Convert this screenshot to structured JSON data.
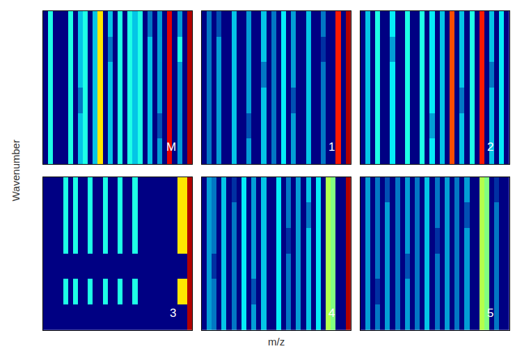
{
  "chart_data": [
    {
      "type": "heatmap",
      "annotation": "M",
      "tick_labels": false,
      "zlim": [
        0,
        10
      ],
      "z": [
        [
          0,
          4,
          0,
          0,
          0,
          4,
          0,
          3,
          4,
          0,
          3,
          6.5,
          0,
          3,
          0,
          4,
          0,
          4,
          3,
          4,
          0,
          3,
          0,
          2.5,
          0,
          9,
          0,
          2.5,
          0,
          9.5
        ],
        [
          0,
          4,
          0,
          0,
          0,
          4,
          0,
          3,
          4,
          0,
          3,
          6.5,
          0,
          3,
          0,
          4,
          0,
          4,
          3,
          4,
          0,
          3,
          0,
          1.5,
          0,
          9,
          0,
          2.5,
          0,
          9.5
        ],
        [
          0,
          4,
          0,
          0,
          0,
          4,
          0,
          2,
          4,
          0,
          3,
          6.5,
          0,
          3,
          0,
          4,
          0,
          4,
          3,
          4,
          0,
          3,
          0,
          2.5,
          0,
          9,
          0,
          2.5,
          0,
          9.5
        ],
        [
          0,
          4,
          0,
          0,
          0,
          4,
          0,
          3,
          4,
          0,
          3,
          6.5,
          0,
          3,
          0,
          4,
          0,
          4,
          3,
          4,
          0,
          3,
          0,
          2.5,
          0,
          9,
          0,
          2.5,
          0,
          9.5
        ],
        [
          0,
          4,
          0,
          0,
          0,
          4,
          0,
          3,
          4,
          0,
          3,
          6.5,
          0,
          2,
          0,
          4,
          0,
          4,
          3,
          4,
          0,
          3,
          0,
          2.5,
          0,
          9,
          0,
          4,
          0,
          9.5
        ],
        [
          0,
          4,
          0,
          0,
          0,
          4,
          0,
          3,
          4,
          0,
          3,
          6.5,
          0,
          3,
          0,
          4,
          0,
          4,
          3,
          4,
          0,
          2,
          0,
          2.5,
          0,
          9,
          0,
          2.5,
          0,
          9.5
        ]
      ]
    },
    {
      "type": "heatmap",
      "annotation": "1",
      "tick_labels": false,
      "zlim": [
        0,
        10
      ],
      "z": [
        [
          0,
          2,
          0,
          2.5,
          0,
          0,
          3,
          0,
          0,
          2.5,
          0,
          0,
          3,
          0,
          2,
          0,
          3.5,
          0,
          2.5,
          0,
          0,
          3,
          0,
          0,
          2,
          0,
          0,
          8.5,
          0,
          9.5
        ],
        [
          0,
          2,
          0,
          2.5,
          0,
          0,
          3,
          0,
          0,
          1.5,
          0,
          0,
          3,
          0,
          2,
          0,
          3.5,
          0,
          2.5,
          0,
          0,
          3,
          0,
          0,
          2,
          0,
          0,
          8.5,
          0,
          9.5
        ],
        [
          0,
          2,
          0,
          2.5,
          0,
          0,
          3,
          0,
          0,
          2.5,
          0,
          0,
          3,
          0,
          2,
          0,
          3.5,
          0,
          1.5,
          0,
          0,
          3,
          0,
          0,
          2,
          0,
          0,
          8.5,
          0,
          9.5
        ],
        [
          0,
          2,
          0,
          2.5,
          0,
          0,
          3,
          0,
          0,
          2.5,
          0,
          0,
          2,
          0,
          2,
          0,
          3.5,
          0,
          2.5,
          0,
          0,
          3,
          0,
          0,
          2,
          0,
          0,
          8.5,
          0,
          9.5
        ],
        [
          0,
          2,
          0,
          2.5,
          0,
          0,
          3,
          0,
          0,
          2.5,
          0,
          0,
          3,
          0,
          2,
          0,
          3.5,
          0,
          2.5,
          0,
          0,
          3,
          0,
          0,
          1,
          0,
          0,
          8.5,
          0,
          9.5
        ],
        [
          0,
          2,
          0,
          1.5,
          0,
          0,
          3,
          0,
          0,
          2.5,
          0,
          0,
          3,
          0,
          2,
          0,
          3.5,
          0,
          2.5,
          0,
          0,
          3,
          0,
          0,
          2,
          0,
          0,
          8.5,
          0,
          9.5
        ]
      ]
    },
    {
      "type": "heatmap",
      "annotation": "2",
      "tick_labels": false,
      "zlim": [
        0,
        10
      ],
      "z": [
        [
          0,
          3,
          0,
          4,
          0,
          0,
          3.5,
          0,
          0,
          4,
          0,
          0,
          4,
          0,
          3.5,
          0,
          3,
          0,
          8,
          0,
          3,
          0,
          4,
          0,
          8.5,
          0,
          3,
          0,
          3.5,
          0
        ],
        [
          0,
          3,
          0,
          4,
          0,
          0,
          3.5,
          0,
          0,
          4,
          0,
          0,
          4,
          0,
          2.5,
          0,
          3,
          0,
          8,
          0,
          3,
          0,
          4,
          0,
          8.5,
          0,
          3,
          0,
          3.5,
          0
        ],
        [
          0,
          3,
          0,
          4,
          0,
          0,
          3.5,
          0,
          0,
          4,
          0,
          0,
          4,
          0,
          3.5,
          0,
          3,
          0,
          8,
          0,
          2,
          0,
          4,
          0,
          8.5,
          0,
          3,
          0,
          3.5,
          0
        ],
        [
          0,
          3,
          0,
          4,
          0,
          0,
          3.5,
          0,
          0,
          4,
          0,
          0,
          4,
          0,
          3.5,
          0,
          3,
          0,
          8,
          0,
          3,
          0,
          4,
          0,
          8.5,
          0,
          2,
          0,
          3.5,
          0
        ],
        [
          0,
          3,
          0,
          4,
          0,
          0,
          2.5,
          0,
          0,
          4,
          0,
          0,
          4,
          0,
          3.5,
          0,
          3,
          0,
          8,
          0,
          3,
          0,
          4,
          0,
          8.5,
          0,
          3,
          0,
          3.5,
          0
        ],
        [
          0,
          3,
          0,
          4,
          0,
          0,
          3.5,
          0,
          0,
          4,
          0,
          0,
          4,
          0,
          3.5,
          0,
          3,
          0,
          8,
          0,
          3,
          0,
          4,
          0,
          8.5,
          0,
          3,
          0,
          3.5,
          0
        ]
      ]
    },
    {
      "type": "heatmap",
      "annotation": "3",
      "tick_labels": false,
      "zlim": [
        0,
        10
      ],
      "z": [
        [
          0,
          0,
          0,
          0,
          0,
          0,
          0,
          0,
          0,
          0,
          0,
          0,
          0,
          0,
          0,
          0,
          0,
          0,
          0,
          0,
          0,
          0,
          0,
          0,
          0,
          0,
          0,
          0,
          0,
          9.5
        ],
        [
          0,
          0,
          0,
          0,
          4,
          0,
          4,
          0,
          0,
          4,
          0,
          0,
          4,
          0,
          0,
          4,
          0,
          0,
          4,
          0,
          0,
          0,
          0,
          0,
          0,
          0,
          0,
          6.5,
          6.5,
          9.5
        ],
        [
          0,
          0,
          0,
          0,
          0,
          0,
          0,
          0,
          0,
          0,
          0,
          0,
          0,
          0,
          0,
          0,
          0,
          0,
          0,
          0,
          0,
          0,
          0,
          0,
          0,
          0,
          0,
          0,
          0,
          9.5
        ],
        [
          0,
          0,
          0,
          0,
          4,
          0,
          4,
          0,
          0,
          4,
          0,
          0,
          4,
          0,
          0,
          4,
          0,
          0,
          4,
          0,
          0,
          0,
          0,
          0,
          0,
          0,
          0,
          6.5,
          6.5,
          9.5
        ],
        [
          0,
          0,
          0,
          0,
          4,
          0,
          4,
          0,
          0,
          4,
          0,
          0,
          4,
          0,
          0,
          4,
          0,
          0,
          4,
          0,
          0,
          0,
          0,
          0,
          0,
          0,
          0,
          6.5,
          6.5,
          9.5
        ],
        [
          0,
          0,
          0,
          0,
          4,
          0,
          4,
          0,
          0,
          4,
          0,
          0,
          4,
          0,
          0,
          4,
          0,
          0,
          4,
          0,
          0,
          0,
          0,
          0,
          0,
          0,
          0,
          6.5,
          6.5,
          9.5
        ]
      ]
    },
    {
      "type": "heatmap",
      "annotation": "4",
      "tick_labels": false,
      "zlim": [
        0,
        10
      ],
      "z": [
        [
          0,
          2.5,
          2,
          0,
          3,
          0,
          2,
          0,
          3.5,
          0,
          2.5,
          0,
          3,
          0,
          0,
          3.5,
          0,
          2,
          0,
          2.5,
          0,
          3,
          0,
          3.5,
          0,
          5.5,
          5,
          0,
          0,
          9.5
        ],
        [
          0,
          2.5,
          2,
          0,
          3,
          0,
          2,
          0,
          3.5,
          0,
          1.5,
          0,
          3,
          0,
          0,
          3.5,
          0,
          2,
          0,
          2.5,
          0,
          3,
          0,
          3.5,
          0,
          5.5,
          5,
          0,
          0,
          9.5
        ],
        [
          0,
          2.5,
          1,
          0,
          3,
          0,
          2,
          0,
          3.5,
          0,
          2.5,
          0,
          3,
          0,
          0,
          3.5,
          0,
          2,
          0,
          2.5,
          0,
          3,
          0,
          3.5,
          0,
          5.5,
          5,
          0,
          0,
          9.5
        ],
        [
          0,
          2.5,
          2,
          0,
          3,
          0,
          2,
          0,
          3.5,
          0,
          2.5,
          0,
          3,
          0,
          0,
          3.5,
          0,
          1,
          0,
          2.5,
          0,
          3,
          0,
          3.5,
          0,
          5.5,
          5,
          0,
          0,
          9.5
        ],
        [
          0,
          2.5,
          2,
          0,
          3,
          0,
          2,
          0,
          3.5,
          0,
          2.5,
          0,
          3,
          0,
          0,
          3.5,
          0,
          2,
          0,
          2.5,
          0,
          2,
          0,
          3.5,
          0,
          5.5,
          5,
          0,
          0,
          9.5
        ],
        [
          0,
          2.5,
          2,
          0,
          3,
          0,
          1,
          0,
          3.5,
          0,
          2.5,
          0,
          3,
          0,
          0,
          3.5,
          0,
          2,
          0,
          2.5,
          0,
          3,
          0,
          3.5,
          0,
          5.5,
          5,
          0,
          0,
          9.5
        ]
      ]
    },
    {
      "type": "heatmap",
      "annotation": "5",
      "tick_labels": false,
      "zlim": [
        0,
        10
      ],
      "z": [
        [
          0,
          2.5,
          0,
          2,
          0,
          2.5,
          0,
          2,
          0,
          2.5,
          0,
          2,
          0,
          3,
          0,
          2,
          0,
          2.5,
          0,
          2,
          0,
          2.5,
          0,
          0,
          5.5,
          5,
          0,
          2,
          0,
          0
        ],
        [
          0,
          2.5,
          0,
          1,
          0,
          2.5,
          0,
          2,
          0,
          2.5,
          0,
          2,
          0,
          3,
          0,
          2,
          0,
          2.5,
          0,
          2,
          0,
          2.5,
          0,
          0,
          5.5,
          5,
          0,
          2,
          0,
          0
        ],
        [
          0,
          2.5,
          0,
          2,
          0,
          2.5,
          0,
          2,
          0,
          1.5,
          0,
          2,
          0,
          3,
          0,
          2,
          0,
          2.5,
          0,
          2,
          0,
          2.5,
          0,
          0,
          5.5,
          5,
          0,
          2,
          0,
          0
        ],
        [
          0,
          2.5,
          0,
          2,
          0,
          2.5,
          0,
          2,
          0,
          2.5,
          0,
          2,
          0,
          3,
          0,
          1,
          0,
          2.5,
          0,
          2,
          0,
          2.5,
          0,
          0,
          5.5,
          5,
          0,
          2,
          0,
          0
        ],
        [
          0,
          2.5,
          0,
          2,
          0,
          2.5,
          0,
          2,
          0,
          2.5,
          0,
          2,
          0,
          3,
          0,
          2,
          0,
          2.5,
          0,
          2,
          0,
          1.5,
          0,
          0,
          5.5,
          5,
          0,
          2,
          0,
          0
        ],
        [
          0,
          2.5,
          0,
          2,
          0,
          1.5,
          0,
          2,
          0,
          2.5,
          0,
          2,
          0,
          3,
          0,
          2,
          0,
          2.5,
          0,
          2,
          0,
          2.5,
          0,
          0,
          5.5,
          5,
          0,
          1,
          0,
          0
        ]
      ]
    }
  ],
  "labels": {
    "x": "m/z",
    "y": "Wavenumber"
  }
}
